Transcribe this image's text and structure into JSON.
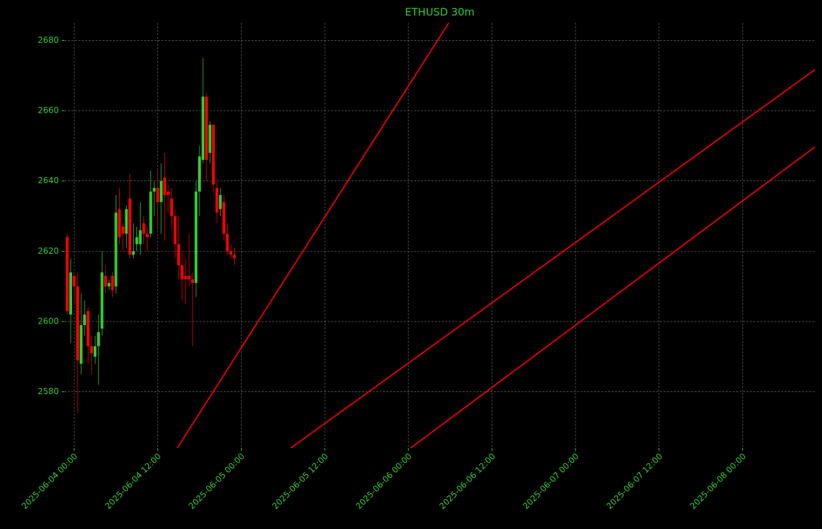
{
  "chart_data": {
    "type": "candlestick",
    "title": "ETHUSD 30m",
    "x": [
      "2025-06-03 23:00",
      "2025-06-03 23:30",
      "2025-06-04 00:00",
      "2025-06-04 00:30",
      "2025-06-04 01:00",
      "2025-06-04 01:30",
      "2025-06-04 02:00",
      "2025-06-04 02:30",
      "2025-06-04 03:00",
      "2025-06-04 03:30",
      "2025-06-04 04:00",
      "2025-06-04 04:30",
      "2025-06-04 05:00",
      "2025-06-04 05:30",
      "2025-06-04 06:00",
      "2025-06-04 06:30",
      "2025-06-04 07:00",
      "2025-06-04 07:30",
      "2025-06-04 08:00",
      "2025-06-04 08:30",
      "2025-06-04 09:00",
      "2025-06-04 09:30",
      "2025-06-04 10:00",
      "2025-06-04 10:30",
      "2025-06-04 11:00",
      "2025-06-04 11:30",
      "2025-06-04 12:00",
      "2025-06-04 12:30",
      "2025-06-04 13:00",
      "2025-06-04 13:30",
      "2025-06-04 14:00",
      "2025-06-04 14:30",
      "2025-06-04 15:00",
      "2025-06-04 15:30",
      "2025-06-04 16:00",
      "2025-06-04 16:30",
      "2025-06-04 17:00",
      "2025-06-04 17:30",
      "2025-06-04 18:00",
      "2025-06-04 18:30",
      "2025-06-04 19:00",
      "2025-06-04 19:30",
      "2025-06-04 20:00",
      "2025-06-04 20:30",
      "2025-06-04 21:00",
      "2025-06-04 21:30",
      "2025-06-04 22:00",
      "2025-06-04 22:30",
      "2025-06-04 23:00"
    ],
    "open": [
      2624,
      2602,
      2613,
      2610,
      2588,
      2599,
      2603,
      2593,
      2590,
      2593,
      2598,
      2613,
      2610,
      2613,
      2610,
      2632,
      2627,
      2625,
      2635,
      2619,
      2622,
      2622,
      2628,
      2625,
      2625,
      2637,
      2638,
      2634,
      2641,
      2637,
      2635,
      2630,
      2622,
      2616,
      2613,
      2613,
      2612,
      2611,
      2637,
      2646,
      2664,
      2648,
      2656,
      2638,
      2632,
      2634,
      2625,
      2620,
      2619
    ],
    "high": [
      2625,
      2618,
      2614,
      2614,
      2608,
      2606,
      2604,
      2596,
      2596,
      2602,
      2620,
      2616,
      2612,
      2614,
      2636,
      2638,
      2628,
      2633,
      2642,
      2628,
      2627,
      2634,
      2630,
      2627,
      2643,
      2640,
      2643,
      2645,
      2648,
      2639,
      2638,
      2632,
      2630,
      2620,
      2618,
      2625,
      2614,
      2640,
      2650,
      2675,
      2665,
      2657,
      2656,
      2640,
      2638,
      2636,
      2628,
      2622,
      2621
    ],
    "low": [
      2602,
      2594,
      2605,
      2574,
      2585,
      2596,
      2588,
      2585,
      2588,
      2582,
      2596,
      2608,
      2609,
      2607,
      2608,
      2622,
      2620,
      2621,
      2618,
      2618,
      2620,
      2619,
      2622,
      2620,
      2624,
      2630,
      2627,
      2625,
      2623,
      2631,
      2626,
      2618,
      2612,
      2606,
      2605,
      2610,
      2593,
      2607,
      2630,
      2645,
      2640,
      2645,
      2637,
      2628,
      2630,
      2623,
      2619,
      2618,
      2616
    ],
    "close": [
      2603,
      2614,
      2610,
      2589,
      2599,
      2602,
      2593,
      2591,
      2593,
      2597,
      2614,
      2610,
      2611,
      2609,
      2631,
      2624,
      2625,
      2632,
      2619,
      2620,
      2624,
      2626,
      2625,
      2624,
      2637,
      2638,
      2634,
      2640,
      2636,
      2636,
      2630,
      2622,
      2616,
      2612,
      2612,
      2612,
      2611,
      2637,
      2647,
      2664,
      2646,
      2656,
      2639,
      2631,
      2636,
      2625,
      2620,
      2619,
      2618
    ],
    "up_color": "#32cd32",
    "down_color": "#ff0000",
    "lines": [
      {
        "color": "#e00000",
        "x": [
          "2025-06-04 14:48",
          "2025-06-06 05:48"
        ],
        "values": [
          2564,
          2685
        ]
      },
      {
        "color": "#e00000",
        "x": [
          "2025-06-05 07:06",
          "2025-06-08 10:24"
        ],
        "values": [
          2564,
          2671.7
        ]
      },
      {
        "color": "#e00000",
        "x": [
          "2025-06-06 00:18",
          "2025-06-08 10:24"
        ],
        "values": [
          2564,
          2649.7
        ]
      }
    ],
    "xlim": [
      "2025-06-03 22:36",
      "2025-06-08 10:24"
    ],
    "xticks": [
      "2025-06-04 00:00",
      "2025-06-04 12:00",
      "2025-06-05 00:00",
      "2025-06-05 12:00",
      "2025-06-06 00:00",
      "2025-06-06 12:00",
      "2025-06-07 00:00",
      "2025-06-07 12:00",
      "2025-06-08 00:00"
    ],
    "ylim": [
      2564,
      2685
    ],
    "yticks": [
      2580,
      2600,
      2620,
      2640,
      2660,
      2680
    ],
    "grid": true
  }
}
